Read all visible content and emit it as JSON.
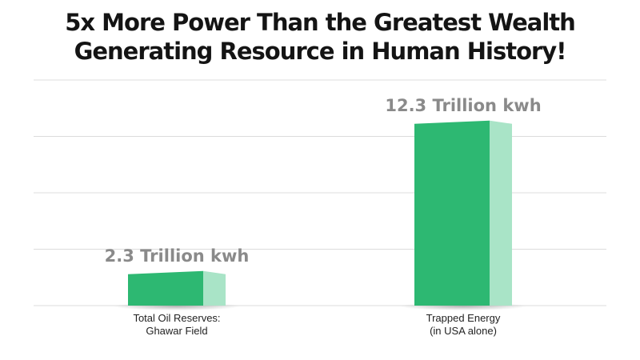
{
  "chart_data": {
    "type": "bar",
    "title_lines": [
      "5x More Power Than the Greatest Wealth",
      "Generating Resource in Human History!"
    ],
    "categories": [
      [
        "Total Oil Reserves:",
        "Ghawar Field"
      ],
      [
        "Trapped Energy",
        "(in USA alone)"
      ]
    ],
    "values": [
      2.3,
      12.3
    ],
    "value_labels": [
      "2.3 Trillion kwh",
      "12.3 Trillion kwh"
    ],
    "unit": "Trillion kwh",
    "ylim": [
      0,
      15
    ],
    "gridlines": [
      0,
      3.75,
      7.5,
      11.25,
      15
    ],
    "grid": true,
    "legend": "none",
    "colors": {
      "bar_front": "#2db872",
      "bar_side": "#a9e4c7",
      "grid": "#dcdcdc",
      "value_text": "#8a8a8a",
      "title_text": "#141414"
    }
  }
}
